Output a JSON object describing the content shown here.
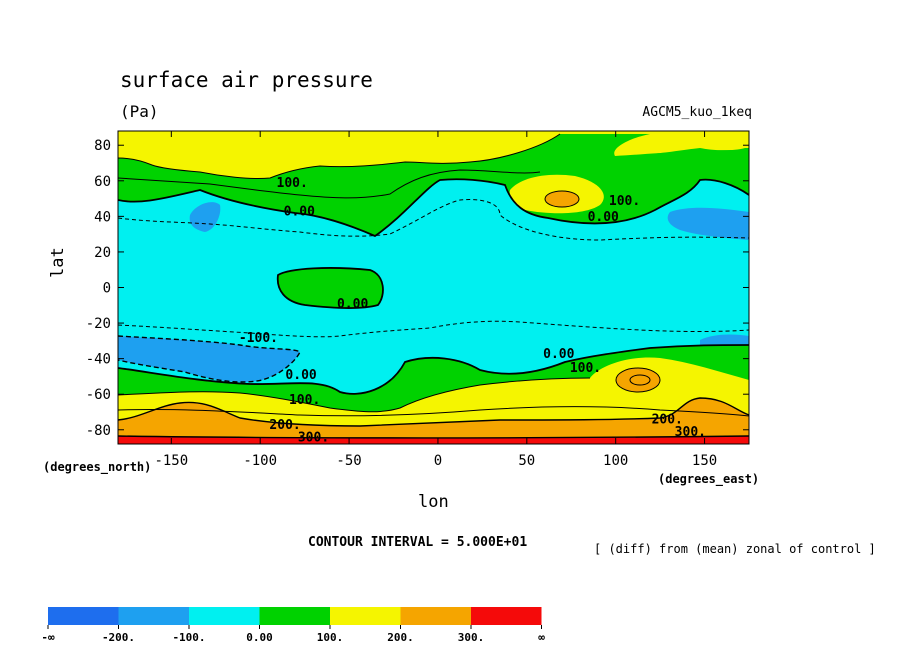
{
  "chart_data": {
    "type": "heatmap",
    "title": "surface air pressure",
    "units": "(Pa)",
    "model_label": "AGCM5_kuo_1keq",
    "xlabel": "lon",
    "ylabel": "lat",
    "x_axis_note": "(degrees_east)",
    "y_axis_note": "(degrees_north)",
    "contour_interval": "CONTOUR INTERVAL = 5.000E+01",
    "subtitle": "[ (diff) from (mean) zonal of control ]",
    "xlim": [
      -180,
      175
    ],
    "ylim": [
      -88,
      88
    ],
    "x_ticks": [
      {
        "value": -150,
        "label": "-150"
      },
      {
        "value": -100,
        "label": "-100"
      },
      {
        "value": -50,
        "label": "-50"
      },
      {
        "value": 0,
        "label": "0"
      },
      {
        "value": 50,
        "label": "50"
      },
      {
        "value": 100,
        "label": "100"
      },
      {
        "value": 150,
        "label": "150"
      }
    ],
    "y_ticks": [
      {
        "value": 80,
        "label": "80"
      },
      {
        "value": 60,
        "label": "60"
      },
      {
        "value": 40,
        "label": "40"
      },
      {
        "value": 20,
        "label": "20"
      },
      {
        "value": 0,
        "label": "0"
      },
      {
        "value": -20,
        "label": "-20"
      },
      {
        "value": -40,
        "label": "-40"
      },
      {
        "value": -60,
        "label": "-60"
      },
      {
        "value": -80,
        "label": "-80"
      }
    ],
    "contour_labels": [
      {
        "text": "100.",
        "lon": -82,
        "lat": 57
      },
      {
        "text": "0.00",
        "lon": -78,
        "lat": 41
      },
      {
        "text": "100.",
        "lon": 105,
        "lat": 47
      },
      {
        "text": "0.00",
        "lon": 93,
        "lat": 38
      },
      {
        "text": "0.00",
        "lon": -48,
        "lat": -11
      },
      {
        "text": "-100.",
        "lon": -101,
        "lat": -30
      },
      {
        "text": "0.00",
        "lon": 68,
        "lat": -39
      },
      {
        "text": "100.",
        "lon": 83,
        "lat": -47
      },
      {
        "text": "0.00",
        "lon": -77,
        "lat": -51
      },
      {
        "text": "100.",
        "lon": -75,
        "lat": -65
      },
      {
        "text": "200.",
        "lon": -86,
        "lat": -79
      },
      {
        "text": "300.",
        "lon": -70,
        "lat": -86
      },
      {
        "text": "200.",
        "lon": 129,
        "lat": -76
      },
      {
        "text": "300.",
        "lon": 142,
        "lat": -83
      }
    ],
    "legend": {
      "levels": [
        {
          "label": "-∞",
          "color": "#1e6eee"
        },
        {
          "label": "-200.",
          "color": "#1ea0f0"
        },
        {
          "label": "-100.",
          "color": "#00f0f0"
        },
        {
          "label": "0.00",
          "color": "#00d200"
        },
        {
          "label": "100.",
          "color": "#f5f500"
        },
        {
          "label": "200.",
          "color": "#f5a500"
        },
        {
          "label": "300.",
          "color": "#f50a0a"
        },
        {
          "label": "∞",
          "color": ""
        }
      ]
    }
  }
}
